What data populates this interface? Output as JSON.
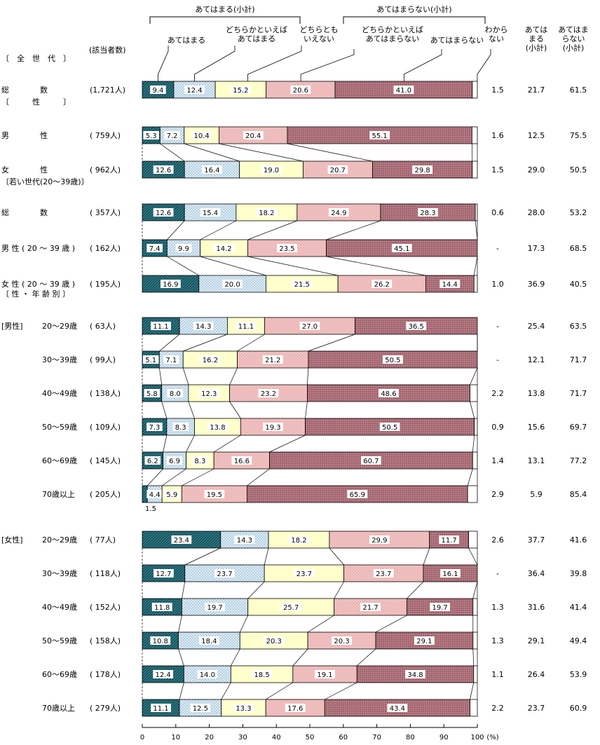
{
  "chart_data": {
    "type": "bar",
    "orientation": "horizontal",
    "stacked": true,
    "unit": "%",
    "header": {
      "group_applies": "あてはまる(小計)",
      "group_not_applies": "あてはまらない(小計)",
      "count_header": "(該当者数)",
      "col_subtotal_applies": [
        "あては",
        "まる",
        "(小計)"
      ],
      "col_subtotal_not": [
        "あてはま",
        "らない",
        "(小計)"
      ]
    },
    "legend": [
      {
        "key": "s1",
        "label": [
          "あてはまる"
        ],
        "color": "#2e7a86"
      },
      {
        "key": "s2",
        "label": [
          "どちらかといえば",
          "あてはまる"
        ],
        "color": "#dcecf6"
      },
      {
        "key": "s3",
        "label": [
          "どちらとも",
          "いえない"
        ],
        "color": "#ffffcc"
      },
      {
        "key": "s4",
        "label": [
          "どちらかといえば",
          "あてはまらない"
        ],
        "color": "#f4c4c4"
      },
      {
        "key": "s5",
        "label": [
          "あてはまらない"
        ],
        "color": "#b87e88"
      },
      {
        "key": "s6",
        "label": [
          "わから",
          "ない"
        ],
        "color": "#ffffff"
      }
    ],
    "sections": [
      {
        "title": "〔　全　世　代　〕",
        "bar_indices": [
          0
        ]
      },
      {
        "title": "〔　　　性　　　〕",
        "bar_indices": [
          1,
          2
        ]
      },
      {
        "title": "〔若い世代(20～39歳)〕",
        "bar_indices": [
          3,
          4,
          5
        ]
      },
      {
        "title": "〔 性 ・ 年 齢 別 〕",
        "bar_indices": [
          6,
          7,
          8,
          9,
          10,
          11
        ]
      },
      {
        "title": "",
        "bar_indices": [
          12,
          13,
          14,
          15,
          16,
          17
        ]
      }
    ],
    "bars": [
      {
        "group": "",
        "label": "総　　　　数",
        "n": "(1,721人)",
        "values": [
          9.4,
          12.4,
          15.2,
          20.6,
          41.0,
          1.5
        ],
        "dk": "1.5",
        "sub_a": "21.7",
        "sub_n": "61.5"
      },
      {
        "group": "",
        "label": "男　　　　性",
        "n": "(  759人)",
        "values": [
          5.3,
          7.2,
          10.4,
          20.4,
          55.1,
          1.6
        ],
        "dk": "1.6",
        "sub_a": "12.5",
        "sub_n": "75.5"
      },
      {
        "group": "",
        "label": "女　　　　性",
        "n": "(  962人)",
        "values": [
          12.6,
          16.4,
          19.0,
          20.7,
          29.8,
          1.5
        ],
        "dk": "1.5",
        "sub_a": "29.0",
        "sub_n": "50.5"
      },
      {
        "group": "",
        "label": "総　　　　数",
        "n": "(  357人)",
        "values": [
          12.6,
          15.4,
          18.2,
          24.9,
          28.3,
          0.6
        ],
        "dk": "0.6",
        "sub_a": "28.0",
        "sub_n": "53.2"
      },
      {
        "group": "",
        "label": "男 性 ( 20 ～ 39 歳 )",
        "n": "(  162人)",
        "values": [
          7.4,
          9.9,
          14.2,
          23.5,
          45.1,
          0
        ],
        "dk": "-",
        "sub_a": "17.3",
        "sub_n": "68.5"
      },
      {
        "group": "",
        "label": "女 性 ( 20 ～ 39 歳 )",
        "n": "(  195人)",
        "values": [
          16.9,
          20.0,
          21.5,
          26.2,
          14.4,
          1.0
        ],
        "dk": "1.0",
        "sub_a": "36.9",
        "sub_n": "40.5"
      },
      {
        "group": "[男性]",
        "label": "20～29歳",
        "n": "(   63人)",
        "values": [
          11.1,
          14.3,
          11.1,
          27.0,
          36.5,
          0
        ],
        "dk": "-",
        "sub_a": "25.4",
        "sub_n": "63.5"
      },
      {
        "group": "",
        "label": "30～39歳",
        "n": "(   99人)",
        "values": [
          5.1,
          7.1,
          16.2,
          21.2,
          50.5,
          0
        ],
        "dk": "-",
        "sub_a": "12.1",
        "sub_n": "71.7"
      },
      {
        "group": "",
        "label": "40～49歳",
        "n": "(  138人)",
        "values": [
          5.8,
          8.0,
          12.3,
          23.2,
          48.6,
          2.2
        ],
        "dk": "2.2",
        "sub_a": "13.8",
        "sub_n": "71.7"
      },
      {
        "group": "",
        "label": "50～59歳",
        "n": "(  109人)",
        "values": [
          7.3,
          8.3,
          13.8,
          19.3,
          50.5,
          0.9
        ],
        "dk": "0.9",
        "sub_a": "15.6",
        "sub_n": "69.7"
      },
      {
        "group": "",
        "label": "60～69歳",
        "n": "(  145人)",
        "values": [
          6.2,
          6.9,
          8.3,
          16.6,
          60.7,
          1.4
        ],
        "dk": "1.4",
        "sub_a": "13.1",
        "sub_n": "77.2"
      },
      {
        "group": "",
        "label": "70歳以上",
        "n": "(  205人)",
        "values": [
          1.5,
          4.4,
          5.9,
          19.5,
          65.9,
          2.9
        ],
        "dk": "2.9",
        "sub_a": "5.9",
        "sub_n": "85.4",
        "below_label": "1.5"
      },
      {
        "group": "[女性]",
        "label": "20～29歳",
        "n": "(   77人)",
        "values": [
          23.4,
          14.3,
          18.2,
          29.9,
          11.7,
          2.6
        ],
        "dk": "2.6",
        "sub_a": "37.7",
        "sub_n": "41.6"
      },
      {
        "group": "",
        "label": "30～39歳",
        "n": "(  118人)",
        "values": [
          12.7,
          23.7,
          23.7,
          23.7,
          16.1,
          0
        ],
        "dk": "-",
        "sub_a": "36.4",
        "sub_n": "39.8"
      },
      {
        "group": "",
        "label": "40～49歳",
        "n": "(  152人)",
        "values": [
          11.8,
          19.7,
          25.7,
          21.7,
          19.7,
          1.3
        ],
        "dk": "1.3",
        "sub_a": "31.6",
        "sub_n": "41.4"
      },
      {
        "group": "",
        "label": "50～59歳",
        "n": "(  158人)",
        "values": [
          10.8,
          18.4,
          20.3,
          20.3,
          29.1,
          1.3
        ],
        "dk": "1.3",
        "sub_a": "29.1",
        "sub_n": "49.4"
      },
      {
        "group": "",
        "label": "60～69歳",
        "n": "(  178人)",
        "values": [
          12.4,
          14.0,
          18.5,
          19.1,
          34.8,
          1.1
        ],
        "dk": "1.1",
        "sub_a": "26.4",
        "sub_n": "53.9"
      },
      {
        "group": "",
        "label": "70歳以上",
        "n": "(  279人)",
        "values": [
          11.1,
          12.5,
          13.3,
          17.6,
          43.4,
          2.2
        ],
        "dk": "2.2",
        "sub_a": "23.7",
        "sub_n": "60.9"
      }
    ],
    "x_axis": {
      "min": 0,
      "max": 100,
      "ticks": [
        0,
        10,
        20,
        30,
        40,
        50,
        60,
        70,
        80,
        90,
        100
      ],
      "unit_label": "(%)"
    }
  }
}
